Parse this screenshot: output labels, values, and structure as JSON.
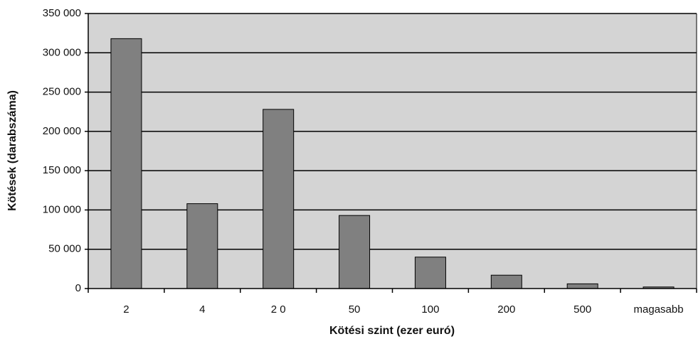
{
  "chart_data": {
    "type": "bar",
    "x_label": "Kötési szint (ezer euró)",
    "y_label": "Kötések (darabszáma)",
    "categories": [
      "2",
      "4",
      "2 0",
      "50",
      "100",
      "200",
      "500",
      "magasabb"
    ],
    "values": [
      318000,
      108000,
      228000,
      93000,
      40000,
      17000,
      6000,
      2000
    ],
    "color": "#808080",
    "ylim": [
      0,
      350000
    ],
    "yticks": [
      0,
      {
        "value": 50000,
        "label": "50 000"
      },
      {
        "value": 100000,
        "label": "100 000"
      },
      {
        "value": 150000,
        "label": "150 000"
      },
      {
        "value": 200000,
        "label": "200 000"
      },
      {
        "value": 250000,
        "label": "250 000"
      },
      {
        "value": 300000,
        "label": "300 000"
      },
      {
        "value": 350000,
        "label": "350 000"
      }
    ],
    "grid": true
  }
}
